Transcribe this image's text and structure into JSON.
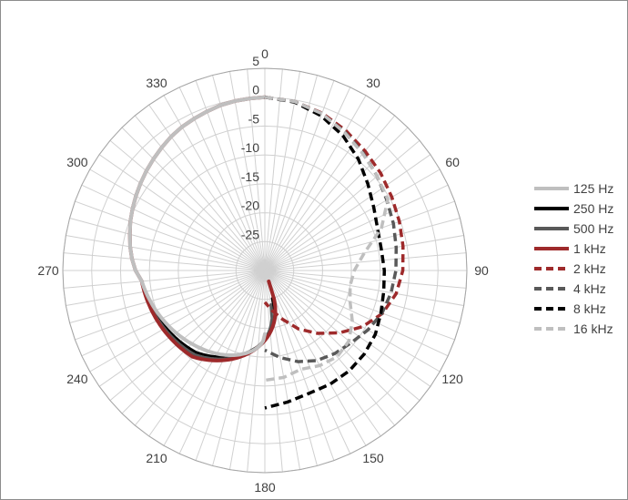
{
  "chart_data": {
    "type": "radar",
    "title": "",
    "angle_labels": [
      "0",
      "30",
      "60",
      "90",
      "120",
      "150",
      "180",
      "210",
      "240",
      "270",
      "300",
      "330"
    ],
    "angle_step_deg": 5,
    "r_ticks": [
      5,
      0,
      -5,
      -10,
      -15,
      -20,
      -25
    ],
    "r_labels": [
      "5",
      "0",
      "-5",
      "-10",
      "-15",
      "-20",
      "-25"
    ],
    "rlim": [
      -30,
      5
    ],
    "grid": true,
    "legend_position": "right",
    "series": [
      {
        "name": "125 Hz",
        "color": "#bfbfbf",
        "dash": false,
        "width": 4,
        "angles": [
          265,
          270,
          275,
          280,
          285,
          290,
          295,
          300,
          305,
          310,
          315,
          320,
          325,
          330,
          335,
          340,
          345,
          350,
          355,
          360
        ],
        "values": [
          -8.6,
          -7.6,
          -6.9,
          -6.3,
          -5.8,
          -5.2,
          -4.7,
          -4.2,
          -3.7,
          -3.2,
          -2.7,
          -2.2,
          -1.7,
          -1.3,
          -1,
          -0.7,
          -0.4,
          -0.2,
          -0.1,
          0
        ],
        "start_angle": 180,
        "start_value": -19,
        "mid_angle": 220,
        "mid_value": -12.5
      },
      {
        "name": "250 Hz",
        "color": "#000000",
        "dash": false,
        "width": 3,
        "start_angle": 165,
        "start_value": -25,
        "mid_angle": 220,
        "mid_value": -11.5
      },
      {
        "name": "500 Hz",
        "color": "#595959",
        "dash": false,
        "width": 3,
        "start_angle": 170,
        "start_value": -24,
        "mid_angle": 220,
        "mid_value": -11
      },
      {
        "name": "1 kHz",
        "color": "#9e2a2b",
        "dash": false,
        "width": 4,
        "start_angle": 160,
        "start_value": -28,
        "mid_angle": 220,
        "mid_value": -10.5
      }
    ],
    "dashed_series": [
      {
        "name": "2 kHz",
        "color": "#9e2a2b",
        "angles": [
          0,
          10,
          20,
          30,
          40,
          50,
          60,
          70,
          80,
          90,
          100,
          110,
          120,
          130,
          140,
          150,
          160,
          170,
          180
        ],
        "values": [
          0,
          -0.3,
          -1,
          -2,
          -3,
          -3.8,
          -4.6,
          -5.2,
          -5.7,
          -6.1,
          -6.9,
          -8.3,
          -10.5,
          -13.2,
          -15.8,
          -18.3,
          -21,
          -23,
          -24.5
        ]
      },
      {
        "name": "4 kHz",
        "color": "#595959",
        "angles": [
          0,
          10,
          20,
          30,
          40,
          50,
          60,
          70,
          80,
          90,
          100,
          110,
          120,
          130,
          140,
          150,
          160,
          170,
          180
        ],
        "values": [
          0,
          -0.3,
          -1.1,
          -2.3,
          -3.5,
          -4.6,
          -5.6,
          -6.3,
          -6.9,
          -7.3,
          -7.8,
          -8.4,
          -9.4,
          -10.5,
          -11.2,
          -12,
          -13.2,
          -14.7,
          -16.2
        ]
      },
      {
        "name": "8 kHz",
        "color": "#000000",
        "angles": [
          0,
          10,
          20,
          30,
          40,
          50,
          60,
          70,
          80,
          90,
          100,
          110,
          120,
          130,
          140,
          150,
          160,
          170,
          180
        ],
        "values": [
          0,
          -0.4,
          -1.5,
          -3,
          -4.8,
          -6.7,
          -8.2,
          -9.2,
          -9.5,
          -9.3,
          -9.1,
          -8.6,
          -7.9,
          -7.5,
          -7.3,
          -7.3,
          -7.4,
          -6.9,
          -6.2
        ]
      },
      {
        "name": "16 kHz",
        "color": "#bfbfbf",
        "angles": [
          0,
          10,
          20,
          30,
          40,
          50,
          60,
          70,
          80,
          90,
          100,
          110,
          120,
          130,
          140,
          150,
          160,
          170,
          180
        ],
        "values": [
          0,
          -0.3,
          -1.1,
          -2.4,
          -3.6,
          -4.6,
          -5.4,
          -8.5,
          -12.5,
          -14.5,
          -15,
          -14.3,
          -12.5,
          -11,
          -10.5,
          -11,
          -11.8,
          -11.2,
          -11
        ]
      }
    ]
  }
}
